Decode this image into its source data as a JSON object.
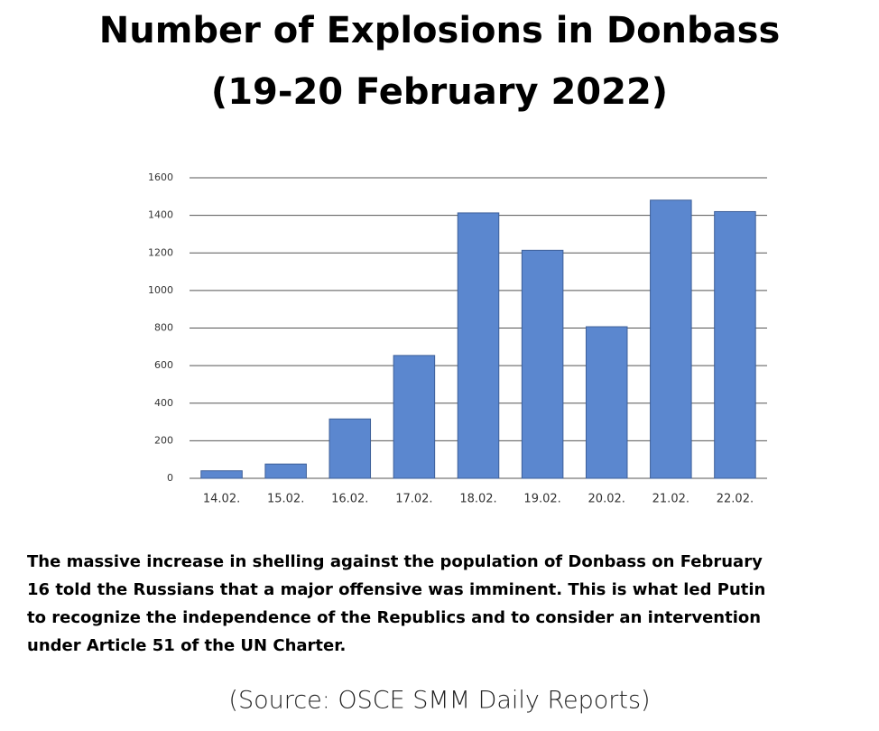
{
  "chart_data": {
    "type": "bar",
    "title": "Number of Explosions in Donbass",
    "subtitle": "(19-20 February 2022)",
    "categories": [
      "14.02.",
      "15.02.",
      "16.02.",
      "17.02.",
      "18.02.",
      "19.02.",
      "20.02.",
      "21.02.",
      "22.02."
    ],
    "values": [
      40,
      76,
      316,
      654,
      1413,
      1214,
      807,
      1481,
      1420
    ],
    "color": "#5b87cf",
    "ylim": [
      0,
      1600
    ],
    "yticks": [
      0,
      200,
      400,
      600,
      800,
      1000,
      1200,
      1400,
      1600
    ],
    "grid": true,
    "description_lines": [
      "The massive increase in shelling against the population of Donbass on February",
      "16 told the Russians that a major offensive was imminent. This is what led Putin",
      "to recognize the independence of the Republics and to consider an intervention",
      "under Article 51 of the UN Charter."
    ],
    "source": "(Source: OSCE SMM Daily Reports)"
  }
}
